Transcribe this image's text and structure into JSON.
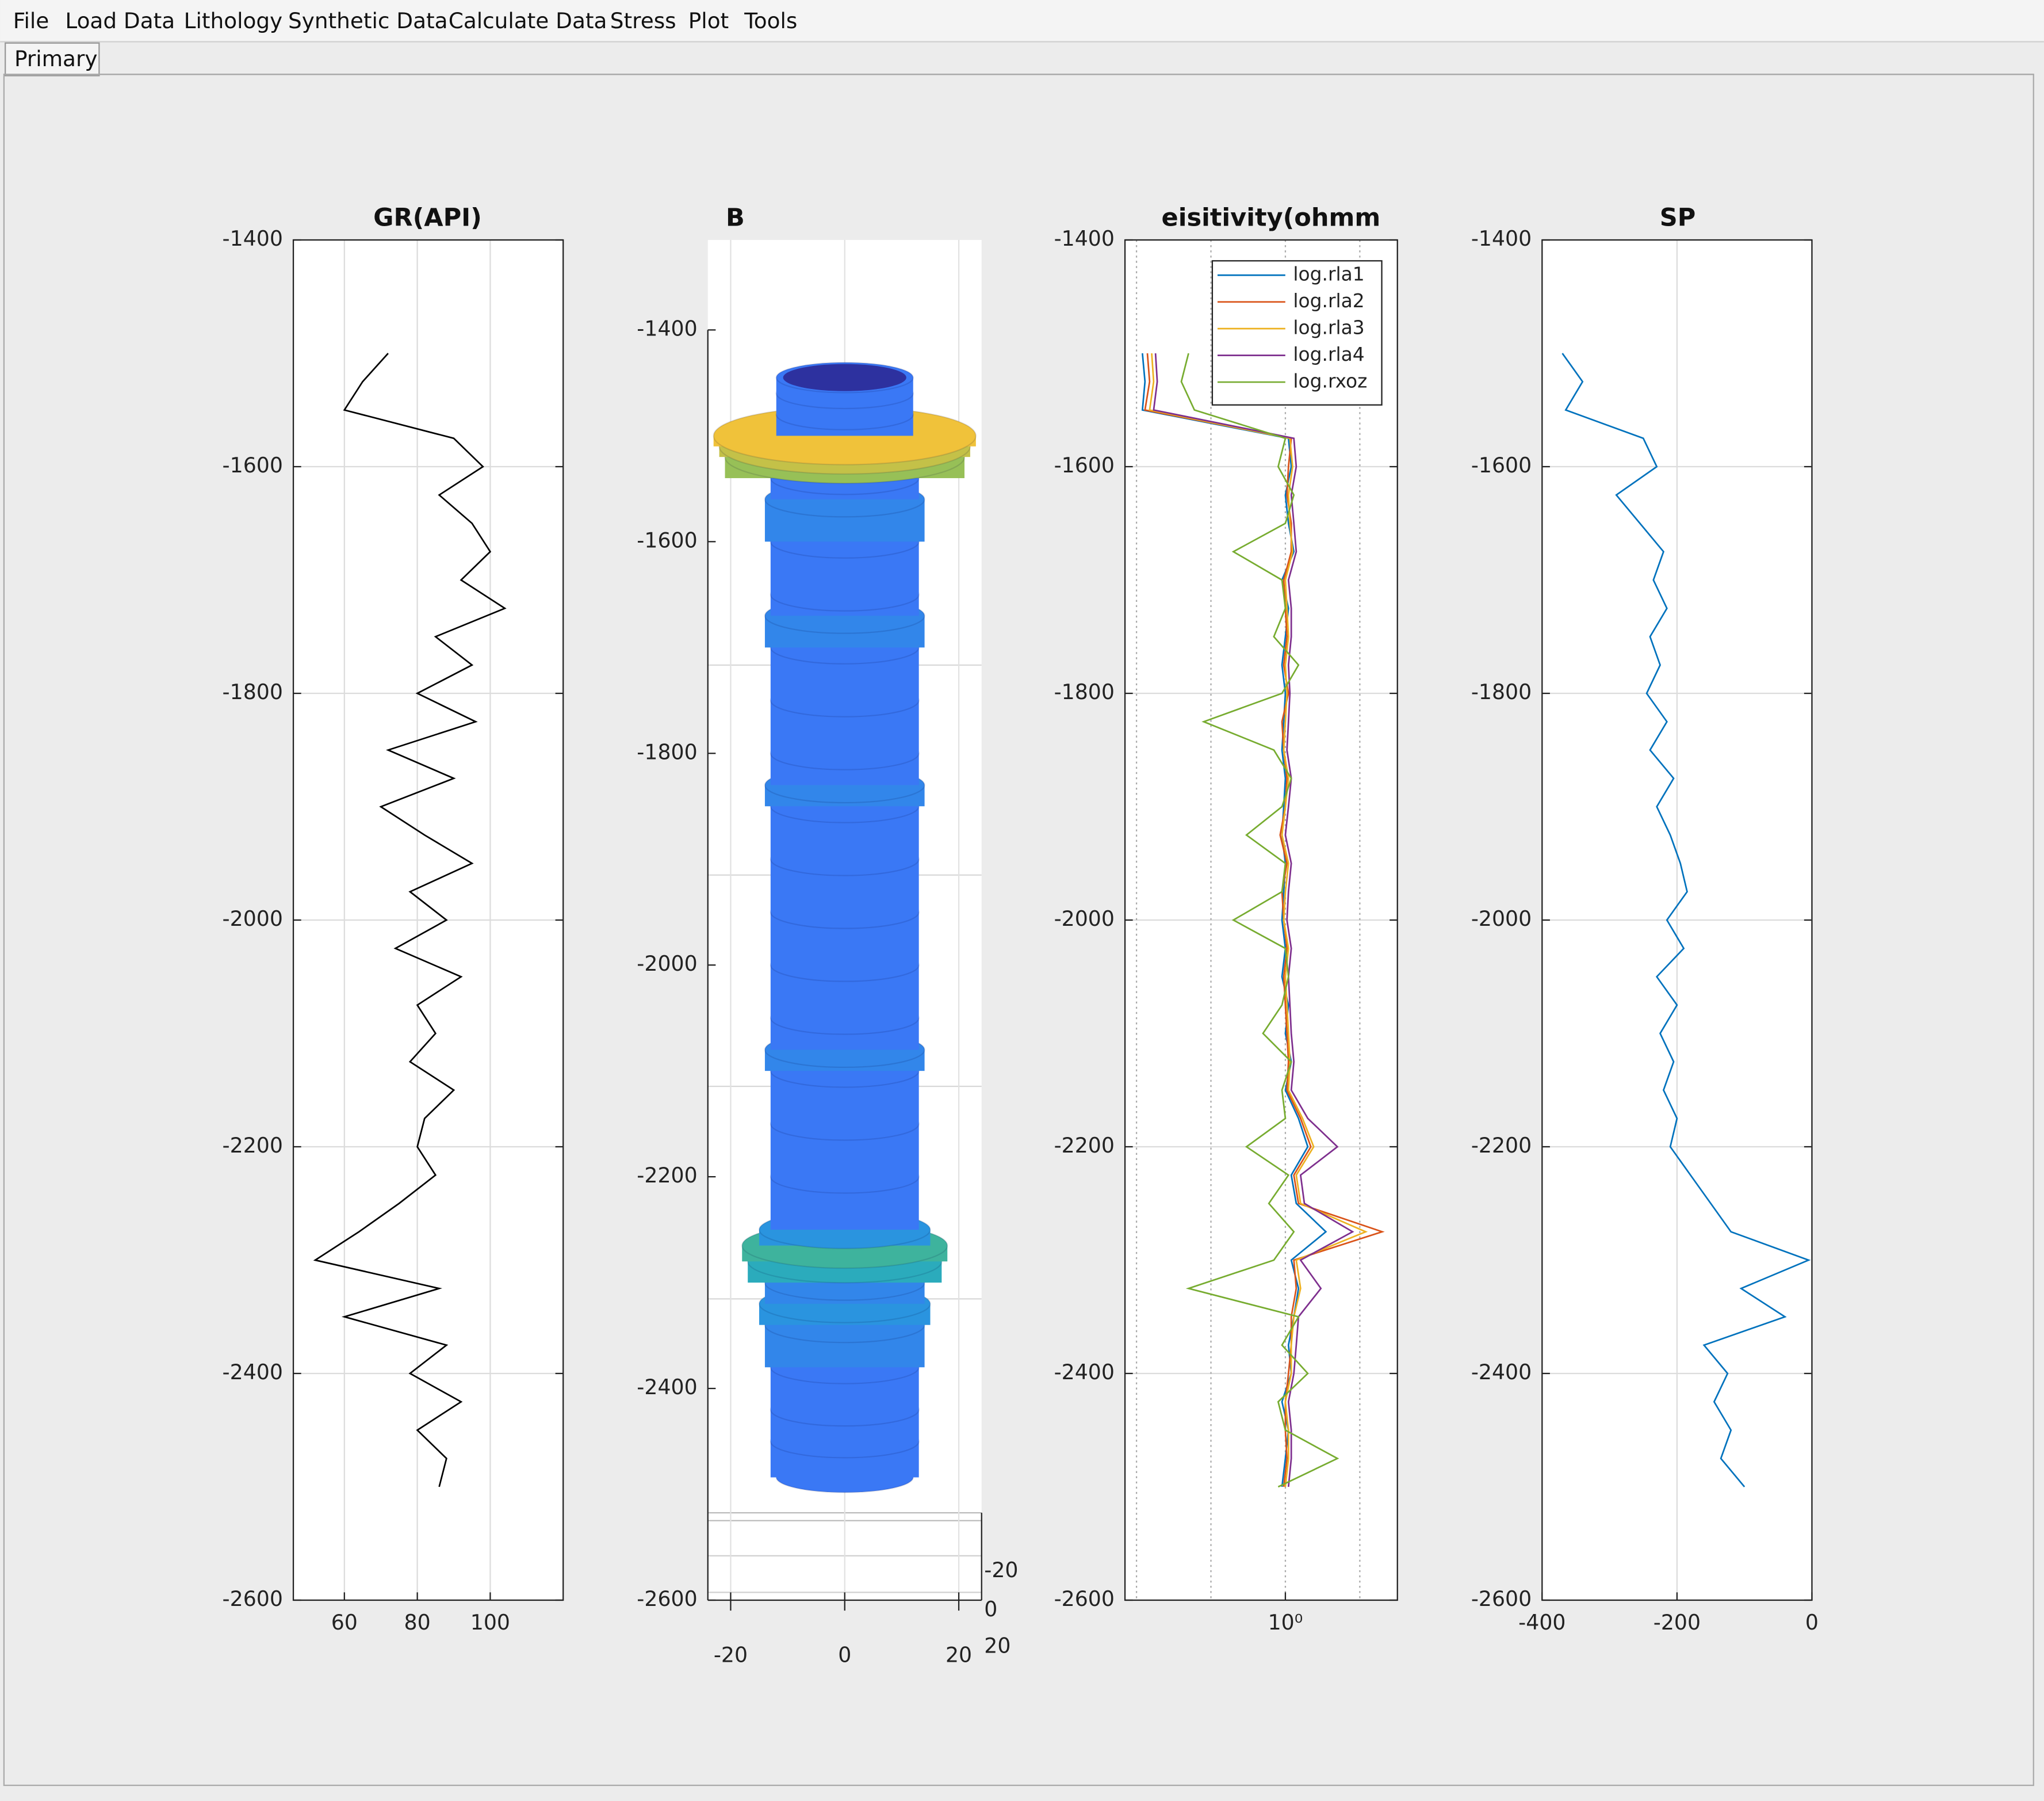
{
  "menu": [
    "File",
    "Load Data",
    "Lithology",
    "Synthetic Data",
    "Calculate Data",
    "Stress",
    "Plot",
    "Tools"
  ],
  "tab": "Primary",
  "chart_data": [
    {
      "type": "line",
      "title": "GR(API)",
      "xlim": [
        46,
        120
      ],
      "xticks": [
        60,
        80,
        100
      ],
      "ylim": [
        -2600,
        -1400
      ],
      "yticks": [
        -1400,
        -1600,
        -1800,
        -2000,
        -2200,
        -2400,
        -2600
      ],
      "grid": true,
      "depth": [
        -1500,
        -1525,
        -1550,
        -1575,
        -1600,
        -1625,
        -1650,
        -1675,
        -1700,
        -1725,
        -1750,
        -1775,
        -1800,
        -1825,
        -1850,
        -1875,
        -1900,
        -1925,
        -1950,
        -1975,
        -2000,
        -2025,
        -2050,
        -2075,
        -2100,
        -2125,
        -2150,
        -2175,
        -2200,
        -2225,
        -2250,
        -2275,
        -2300,
        -2325,
        -2350,
        -2375,
        -2400,
        -2425,
        -2450,
        -2475,
        -2500
      ],
      "series": [
        {
          "color": "#000000",
          "values": [
            72,
            65,
            60,
            90,
            98,
            86,
            95,
            100,
            92,
            104,
            85,
            95,
            80,
            96,
            72,
            90,
            70,
            82,
            95,
            78,
            88,
            74,
            92,
            80,
            85,
            78,
            90,
            82,
            80,
            85,
            75,
            64,
            52,
            86,
            60,
            88,
            78,
            92,
            80,
            88,
            86
          ]
        }
      ]
    },
    {
      "type": "cylinder",
      "title": "B",
      "xlim": [
        -24,
        24
      ],
      "xticks": [
        -20,
        0,
        20
      ],
      "ylim": [
        -2600,
        -1400
      ],
      "yticks": [
        -1400,
        -1600,
        -1800,
        -2000,
        -2200,
        -2400,
        -2600
      ],
      "zticks": [
        -20,
        0,
        20
      ],
      "clim": [
        13,
        23
      ],
      "colormap": [
        "#3a78f5",
        "#1fa6d0",
        "#5cbf6a",
        "#f0c23a"
      ],
      "depth": [
        -1445,
        -1460,
        -1480,
        -1500,
        -1510,
        -1520,
        -1540,
        -1560,
        -1600,
        -1650,
        -1670,
        -1700,
        -1750,
        -1800,
        -1830,
        -1850,
        -1900,
        -1950,
        -2000,
        -2050,
        -2080,
        -2100,
        -2150,
        -2200,
        -2250,
        -2265,
        -2280,
        -2300,
        -2320,
        -2340,
        -2380,
        -2420,
        -2450,
        -2484
      ],
      "values": [
        12,
        12,
        12,
        23,
        22,
        21,
        13,
        14,
        13,
        13,
        14,
        13,
        13,
        13,
        14,
        13,
        13,
        13,
        13,
        13,
        14,
        13,
        13,
        13,
        15,
        18,
        17,
        14,
        15,
        14,
        13,
        13,
        13,
        12
      ]
    },
    {
      "type": "line",
      "title": "eisitivity(ohmm",
      "xscale": "log",
      "xlim": [
        0.007,
        32
      ],
      "xticks": [
        {
          "value": 1,
          "label": "10⁰"
        }
      ],
      "xgrid": [
        0.01,
        0.1,
        1,
        10
      ],
      "ylim": [
        -2600,
        -1400
      ],
      "yticks": [
        -1400,
        -1600,
        -1800,
        -2000,
        -2200,
        -2400,
        -2600
      ],
      "grid": true,
      "legend": "northeast",
      "depth": [
        -1500,
        -1525,
        -1550,
        -1575,
        -1600,
        -1625,
        -1650,
        -1675,
        -1700,
        -1725,
        -1750,
        -1775,
        -1800,
        -1825,
        -1850,
        -1875,
        -1900,
        -1925,
        -1950,
        -1975,
        -2000,
        -2025,
        -2050,
        -2075,
        -2100,
        -2125,
        -2150,
        -2175,
        -2200,
        -2225,
        -2250,
        -2275,
        -2300,
        -2325,
        -2350,
        -2375,
        -2400,
        -2425,
        -2450,
        -2475,
        -2500
      ],
      "series": [
        {
          "name": "log.rla1",
          "color": "#0072bd",
          "values": [
            0.012,
            0.013,
            0.012,
            1.1,
            1.2,
            1.0,
            1.1,
            1.3,
            0.9,
            1.1,
            1.0,
            0.9,
            1.0,
            0.95,
            0.9,
            1.0,
            0.95,
            0.9,
            1.0,
            0.95,
            0.9,
            1.0,
            0.9,
            1.1,
            1.0,
            1.2,
            1.0,
            1.5,
            2.0,
            1.2,
            1.4,
            3.5,
            1.2,
            1.5,
            1.3,
            1.1,
            1.2,
            0.9,
            1.1,
            1.0,
            0.9
          ]
        },
        {
          "name": "log.rla2",
          "color": "#d95319",
          "values": [
            0.014,
            0.015,
            0.013,
            1.2,
            1.1,
            1.05,
            1.2,
            1.2,
            0.95,
            1.0,
            1.05,
            0.95,
            1.1,
            0.9,
            0.95,
            1.05,
            1.0,
            0.85,
            1.05,
            0.9,
            0.95,
            1.05,
            0.95,
            1.0,
            1.05,
            1.1,
            1.05,
            1.6,
            2.2,
            1.3,
            1.5,
            20,
            1.3,
            1.4,
            1.2,
            1.2,
            1.1,
            1.0,
            1.0,
            1.05,
            0.95
          ]
        },
        {
          "name": "log.rla3",
          "color": "#edb120",
          "values": [
            0.016,
            0.017,
            0.015,
            1.15,
            1.25,
            1.1,
            1.15,
            1.25,
            1.0,
            1.05,
            1.1,
            1.0,
            1.05,
            1.0,
            0.95,
            1.1,
            1.0,
            0.9,
            1.1,
            1.0,
            0.95,
            1.1,
            1.0,
            1.05,
            1.1,
            1.15,
            1.1,
            1.7,
            2.4,
            1.4,
            1.6,
            12,
            1.4,
            1.6,
            1.3,
            1.2,
            1.2,
            1.0,
            1.1,
            1.1,
            1.0
          ]
        },
        {
          "name": "log.rla4",
          "color": "#7e2f8e",
          "values": [
            0.018,
            0.019,
            0.017,
            1.3,
            1.4,
            1.2,
            1.3,
            1.4,
            1.1,
            1.2,
            1.2,
            1.1,
            1.15,
            1.1,
            1.05,
            1.2,
            1.1,
            1.0,
            1.2,
            1.1,
            1.05,
            1.2,
            1.1,
            1.15,
            1.2,
            1.3,
            1.2,
            2.0,
            5,
            1.6,
            1.8,
            8,
            1.6,
            3.0,
            1.5,
            1.4,
            1.3,
            1.1,
            1.2,
            1.2,
            1.1
          ]
        },
        {
          "name": "log.rxoz",
          "color": "#77ac30",
          "values": [
            0.05,
            0.04,
            0.06,
            1.0,
            0.8,
            1.3,
            1.0,
            0.2,
            0.9,
            1.0,
            0.7,
            1.5,
            0.9,
            0.08,
            0.7,
            1.2,
            0.9,
            0.3,
            1.0,
            0.9,
            0.2,
            1.0,
            1.1,
            0.9,
            0.5,
            1.2,
            0.9,
            1.0,
            0.3,
            1.1,
            0.6,
            1.3,
            0.7,
            0.05,
            1.5,
            0.9,
            2.0,
            0.8,
            1.0,
            5,
            0.8
          ]
        }
      ]
    },
    {
      "type": "line",
      "title": "SP",
      "xlim": [
        -400,
        0
      ],
      "xticks": [
        -400,
        -200,
        0
      ],
      "ylim": [
        -2600,
        -1400
      ],
      "yticks": [
        -1400,
        -1600,
        -1800,
        -2000,
        -2200,
        -2400,
        -2600
      ],
      "grid": true,
      "depth": [
        -1500,
        -1525,
        -1550,
        -1575,
        -1600,
        -1625,
        -1650,
        -1675,
        -1700,
        -1725,
        -1750,
        -1775,
        -1800,
        -1825,
        -1850,
        -1875,
        -1900,
        -1925,
        -1950,
        -1975,
        -2000,
        -2025,
        -2050,
        -2075,
        -2100,
        -2125,
        -2150,
        -2175,
        -2200,
        -2225,
        -2250,
        -2275,
        -2300,
        -2325,
        -2350,
        -2375,
        -2400,
        -2425,
        -2450,
        -2475,
        -2500
      ],
      "series": [
        {
          "color": "#0072bd",
          "values": [
            -370,
            -340,
            -365,
            -250,
            -230,
            -290,
            -255,
            -220,
            -235,
            -215,
            -240,
            -225,
            -245,
            -215,
            -240,
            -205,
            -230,
            -210,
            -195,
            -185,
            -215,
            -190,
            -230,
            -200,
            -225,
            -205,
            -220,
            -200,
            -210,
            -180,
            -150,
            -120,
            -5,
            -105,
            -40,
            -160,
            -125,
            -145,
            -120,
            -135,
            -100
          ]
        }
      ]
    }
  ]
}
